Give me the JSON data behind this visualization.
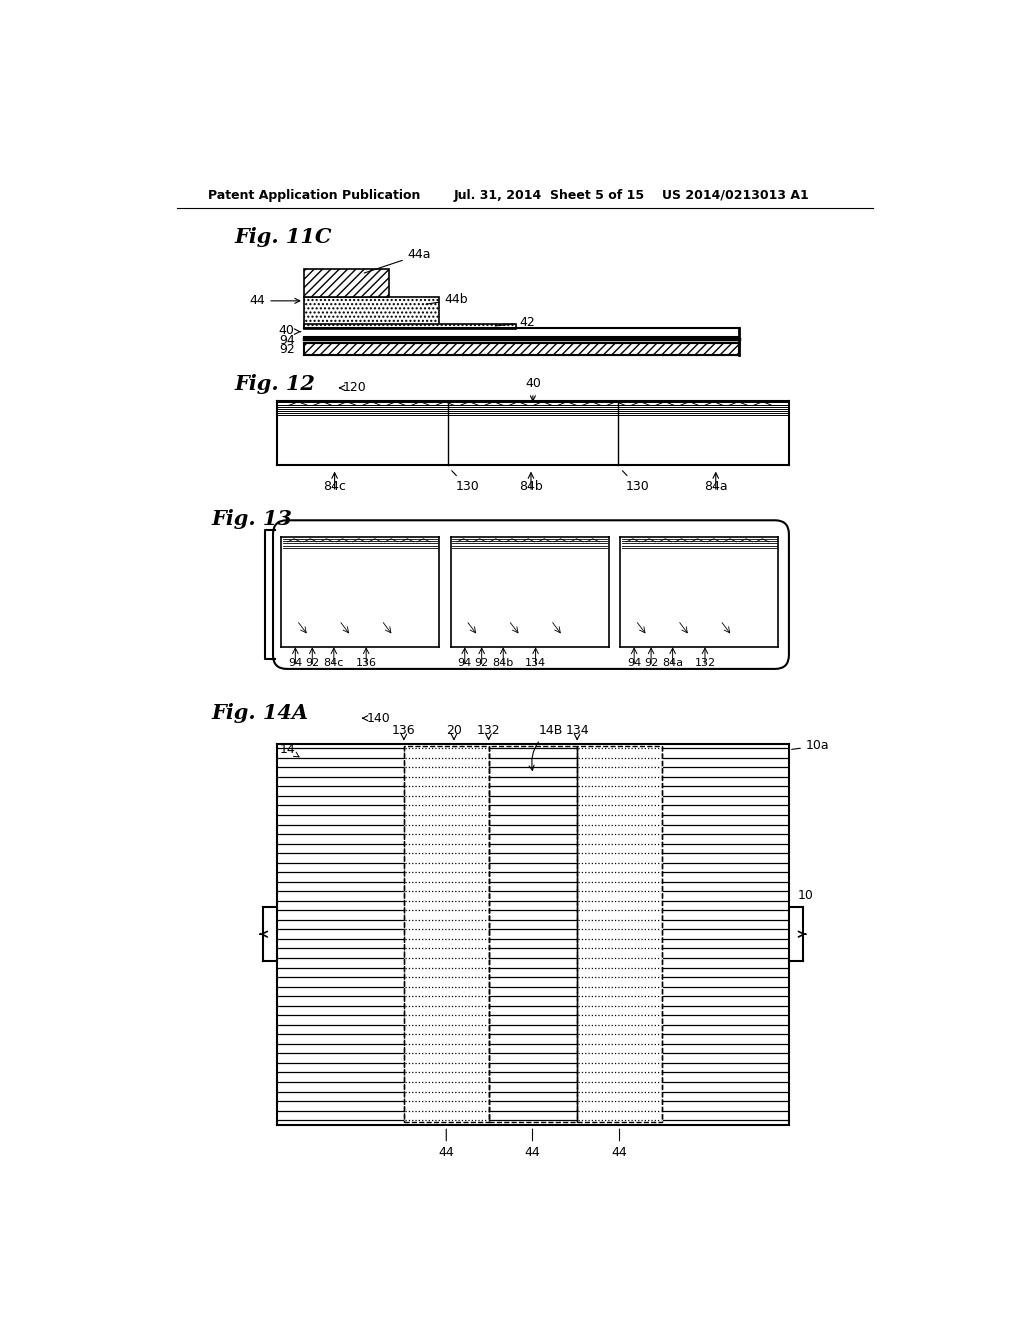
{
  "title_left": "Patent Application Publication",
  "title_mid": "Jul. 31, 2014  Sheet 5 of 15",
  "title_right": "US 2014/0213013 A1",
  "bg_color": "#ffffff",
  "line_color": "#000000"
}
